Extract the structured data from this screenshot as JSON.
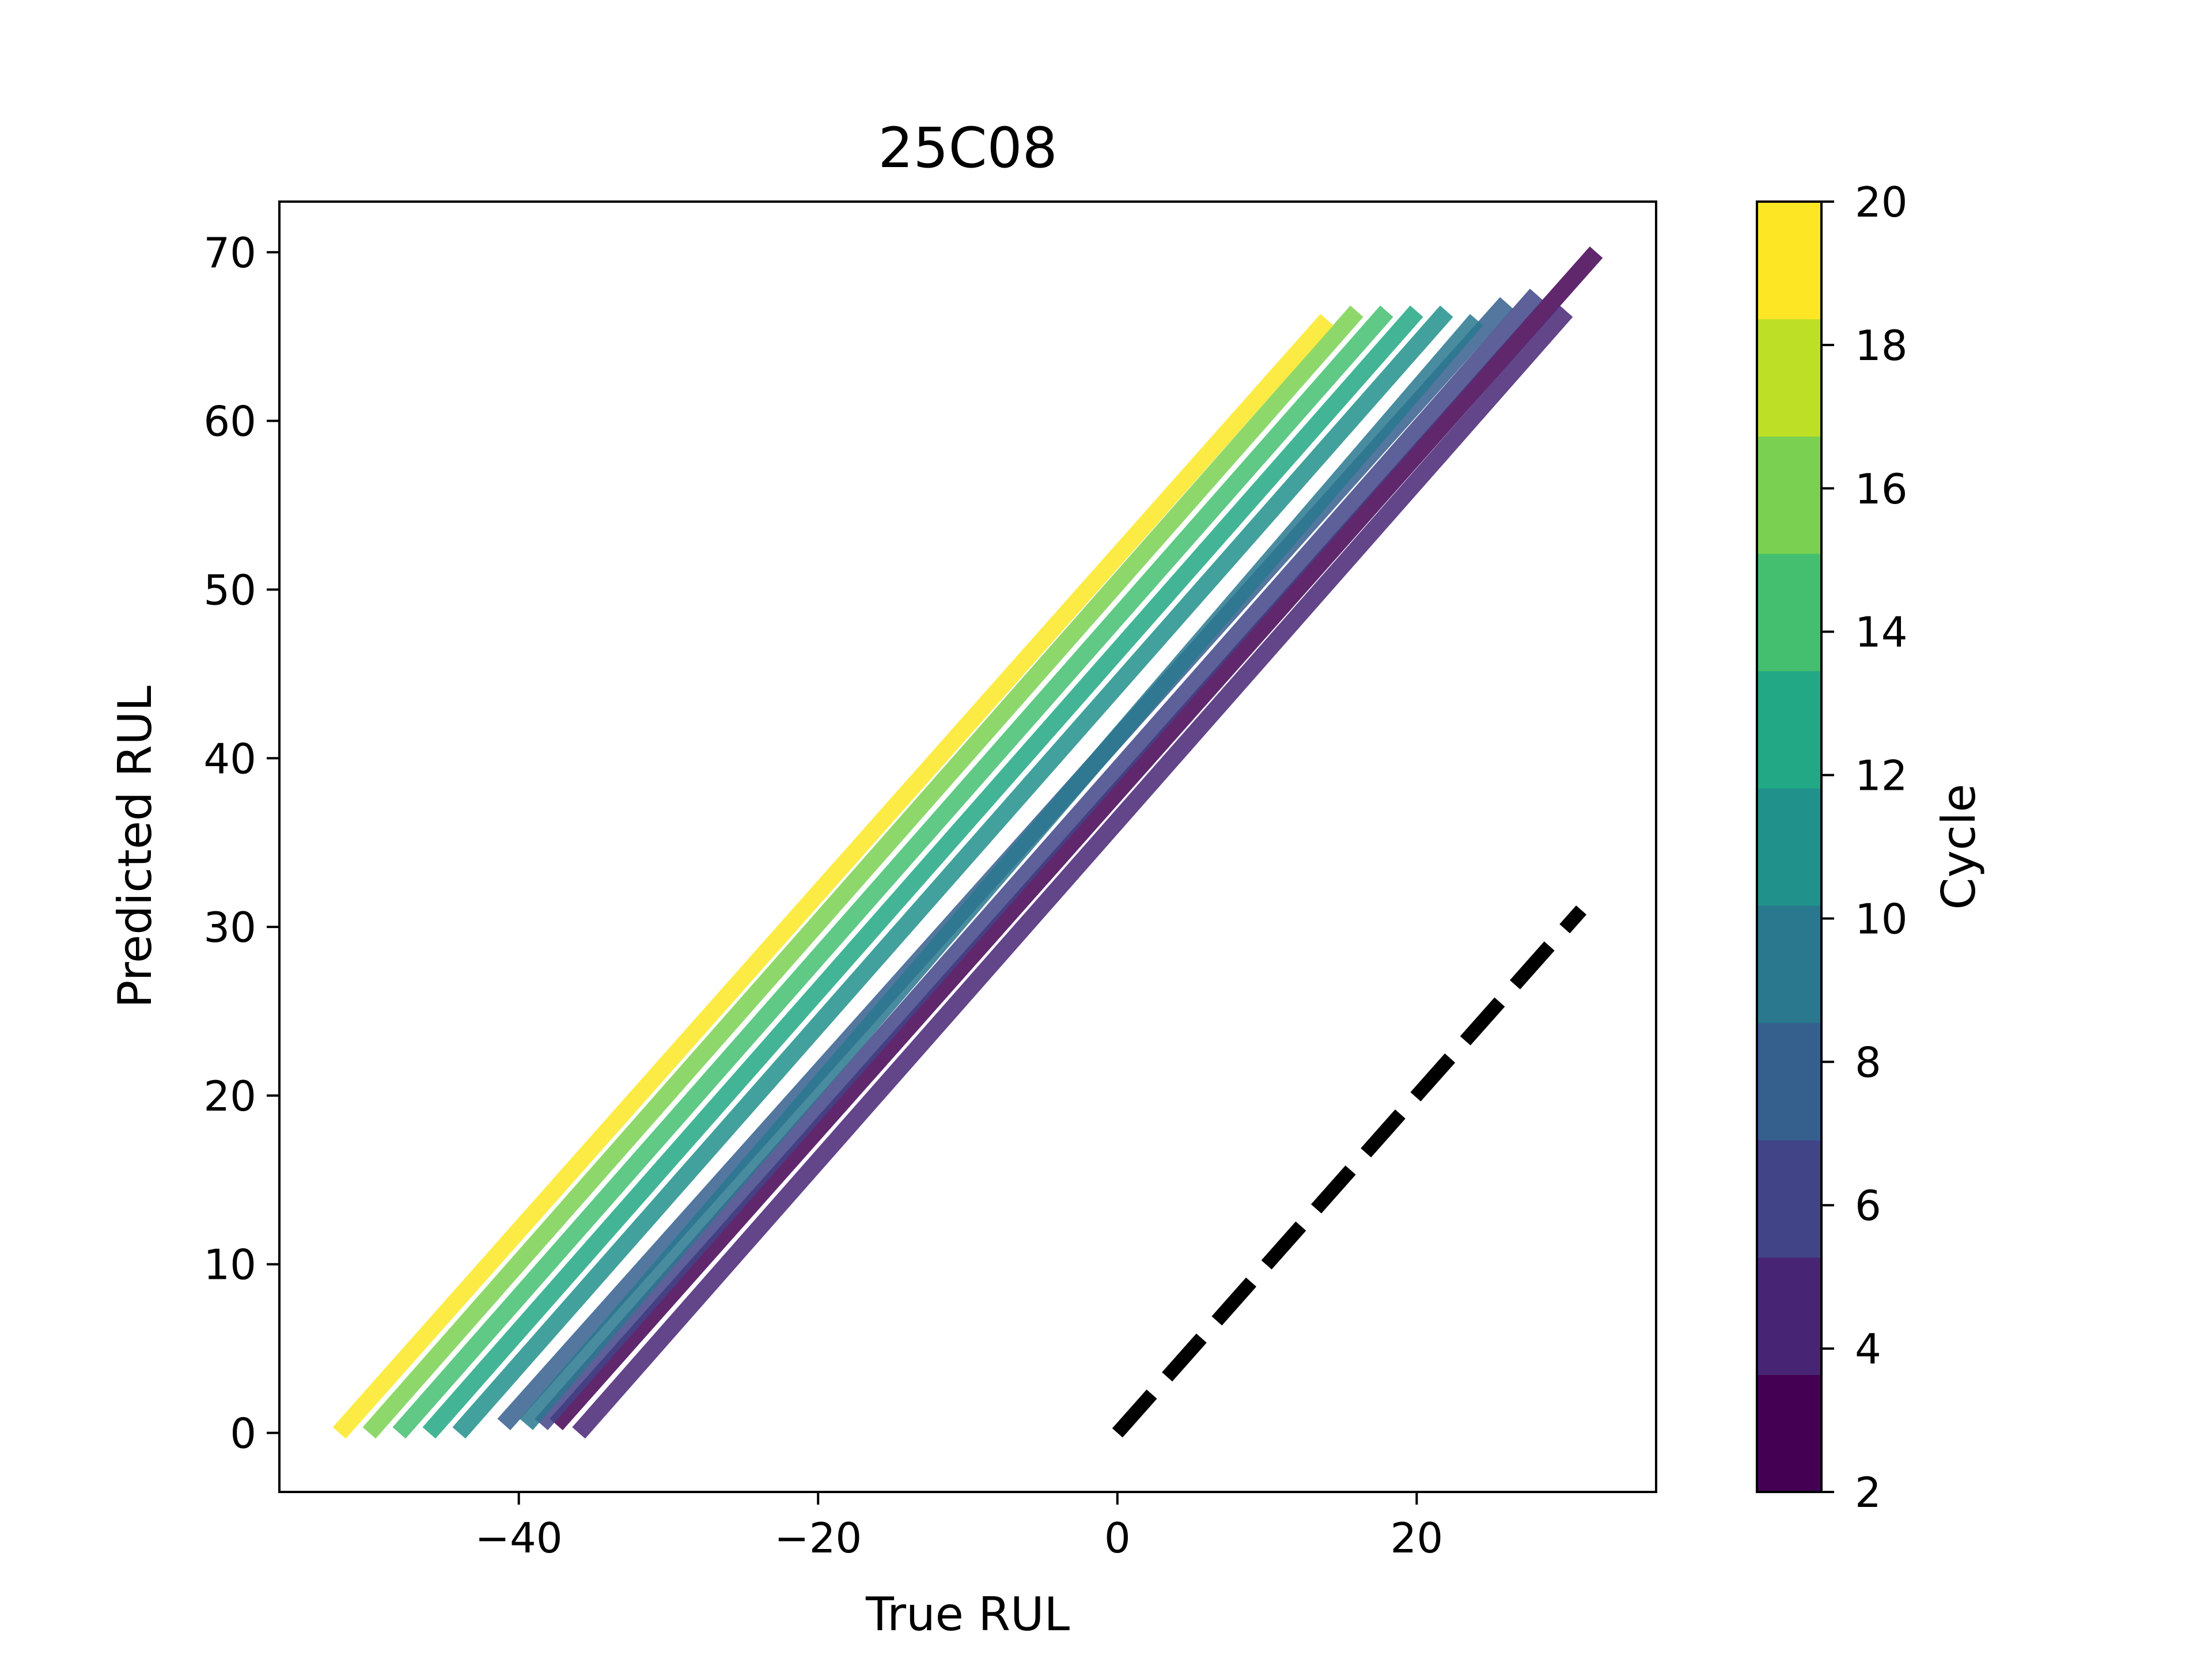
{
  "chart_data": {
    "type": "line",
    "title": "25C08",
    "xlabel": "True RUL",
    "ylabel": "Predicted RUL",
    "xlim": [
      -56,
      36
    ],
    "ylim": [
      -3.5,
      73
    ],
    "xticks": [
      -40,
      -20,
      0,
      20
    ],
    "xtick_labels": [
      "−40",
      "−20",
      "0",
      "20"
    ],
    "yticks": [
      0,
      10,
      20,
      30,
      40,
      50,
      60,
      70
    ],
    "ytick_labels": [
      "0",
      "10",
      "20",
      "30",
      "40",
      "50",
      "60",
      "70"
    ],
    "grid": false,
    "colorbar": {
      "label": "Cycle",
      "range": [
        2,
        20
      ],
      "ticks": [
        2,
        4,
        6,
        8,
        10,
        12,
        14,
        16,
        18,
        20
      ],
      "tick_labels": [
        "2",
        "4",
        "6",
        "8",
        "10",
        "12",
        "14",
        "16",
        "18",
        "20"
      ],
      "colors": [
        "#440154",
        "#482475",
        "#414487",
        "#355f8d",
        "#2a788e",
        "#21918c",
        "#22a884",
        "#44bf70",
        "#7ad151",
        "#bddf26",
        "#fde725"
      ]
    },
    "series": [
      {
        "cycle": 3,
        "color": "#440154",
        "x": [
          -37.5,
          32
        ],
        "y": [
          0.5,
          70
        ]
      },
      {
        "cycle": 4,
        "color": "#482475",
        "x": [
          -36,
          30
        ],
        "y": [
          0,
          66.5
        ]
      },
      {
        "cycle": 6,
        "color": "#414487",
        "x": [
          -38.5,
          28
        ],
        "y": [
          0.5,
          67.5
        ]
      },
      {
        "cycle": 8,
        "color": "#355f8d",
        "x": [
          -41,
          26
        ],
        "y": [
          0.5,
          67
        ]
      },
      {
        "cycle": 10,
        "color": "#2a788e",
        "x": [
          -39.5,
          24
        ],
        "y": [
          0.5,
          66
        ]
      },
      {
        "cycle": 12,
        "color": "#21918c",
        "x": [
          -44,
          22
        ],
        "y": [
          0,
          66.5
        ]
      },
      {
        "cycle": 14,
        "color": "#22a884",
        "x": [
          -46,
          20
        ],
        "y": [
          0,
          66.5
        ]
      },
      {
        "cycle": 16,
        "color": "#44bf70",
        "x": [
          -48,
          18
        ],
        "y": [
          0,
          66.5
        ]
      },
      {
        "cycle": 17,
        "color": "#7ad151",
        "x": [
          -50,
          16
        ],
        "y": [
          0,
          66.5
        ]
      },
      {
        "cycle": 19,
        "color": "#fde725",
        "x": [
          -52,
          14
        ],
        "y": [
          0,
          66
        ]
      }
    ],
    "reference_line": {
      "style": "dashed",
      "color": "#000000",
      "x": [
        0,
        31
      ],
      "y": [
        0,
        31
      ]
    }
  }
}
